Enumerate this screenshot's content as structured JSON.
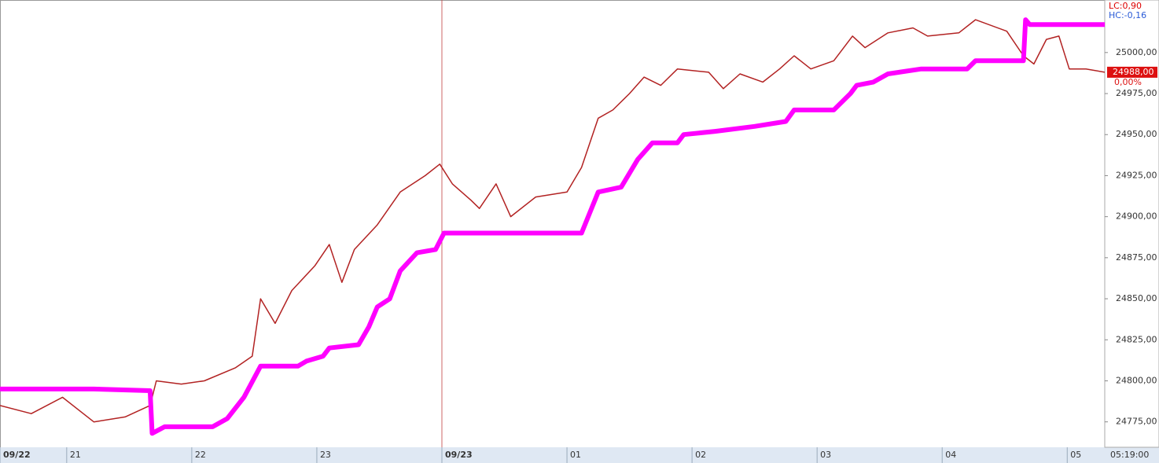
{
  "chart_data": {
    "type": "line",
    "xlim": [
      0,
      530
    ],
    "ylim": [
      24760,
      25032
    ],
    "xticks": [
      {
        "value": 0,
        "label": "09/22"
      },
      {
        "value": 32,
        "label": "21"
      },
      {
        "value": 92,
        "label": "22"
      },
      {
        "value": 152,
        "label": "23"
      },
      {
        "value": 212,
        "label": "09/23"
      },
      {
        "value": 272,
        "label": "01"
      },
      {
        "value": 332,
        "label": "02"
      },
      {
        "value": 392,
        "label": "03"
      },
      {
        "value": 452,
        "label": "04"
      },
      {
        "value": 512,
        "label": "05"
      }
    ],
    "yticks": [
      {
        "value": 24775,
        "label": "24775,00"
      },
      {
        "value": 24800,
        "label": "24800,00"
      },
      {
        "value": 24825,
        "label": "24825,00"
      },
      {
        "value": 24850,
        "label": "24850,00"
      },
      {
        "value": 24875,
        "label": "24875,00"
      },
      {
        "value": 24900,
        "label": "24900,00"
      },
      {
        "value": 24925,
        "label": "24925,00"
      },
      {
        "value": 24950,
        "label": "24950,00"
      },
      {
        "value": 24975,
        "label": "24975,00"
      },
      {
        "value": 25000,
        "label": "25000,00"
      }
    ],
    "grid": false,
    "time_label": "05:19:00",
    "last_price": {
      "value": 24988,
      "label": "24988,00"
    },
    "change_label": "0,00%",
    "lc_label": "LC:0,90",
    "hc_label": "HC:-0,16",
    "series": [
      {
        "color": "#b22222",
        "width": 1.5,
        "x": [
          0,
          15,
          30,
          45,
          60,
          72,
          75,
          87,
          98,
          113,
          121,
          125,
          132,
          140,
          151,
          158,
          164,
          170,
          181,
          192,
          204,
          211,
          217,
          226,
          230,
          238,
          245,
          257,
          272,
          279,
          287,
          294,
          302,
          309,
          317,
          325,
          340,
          347,
          355,
          366,
          374,
          381,
          389,
          400,
          409,
          415,
          426,
          438,
          445,
          460,
          468,
          483,
          491,
          496,
          502,
          508,
          513,
          521,
          530
        ],
        "values": [
          24785,
          24780,
          24790,
          24775,
          24778,
          24785,
          24800,
          24798,
          24800,
          24808,
          24815,
          24850,
          24835,
          24855,
          24870,
          24883,
          24860,
          24880,
          24895,
          24915,
          24925,
          24932,
          24920,
          24910,
          24905,
          24920,
          24900,
          24912,
          24915,
          24930,
          24960,
          24965,
          24975,
          24985,
          24980,
          24990,
          24988,
          24978,
          24987,
          24982,
          24990,
          24998,
          24990,
          24995,
          25010,
          25003,
          25012,
          25015,
          25010,
          25012,
          25020,
          25013,
          24998,
          24993,
          25008,
          25010,
          24990,
          24990,
          24988
        ]
      },
      {
        "color": "#ff00ff",
        "width": 6,
        "x": [
          0,
          45,
          72,
          73,
          79,
          102,
          109,
          117,
          125,
          143,
          147,
          155,
          158,
          172,
          177,
          181,
          187,
          192,
          200,
          209,
          213,
          279,
          287,
          298,
          306,
          313,
          325,
          328,
          343,
          362,
          377,
          381,
          400,
          408,
          411,
          419,
          426,
          442,
          464,
          468,
          491,
          492,
          494,
          530
        ],
        "values": [
          24795,
          24795,
          24794,
          24768,
          24772,
          24772,
          24777,
          24790,
          24809,
          24809,
          24812,
          24815,
          24820,
          24822,
          24833,
          24845,
          24850,
          24867,
          24878,
          24880,
          24890,
          24890,
          24915,
          24918,
          24935,
          24945,
          24945,
          24950,
          24952,
          24955,
          24958,
          24965,
          24965,
          24975,
          24980,
          24982,
          24987,
          24990,
          24990,
          24995,
          24995,
          25020,
          25017,
          25017
        ]
      }
    ]
  }
}
